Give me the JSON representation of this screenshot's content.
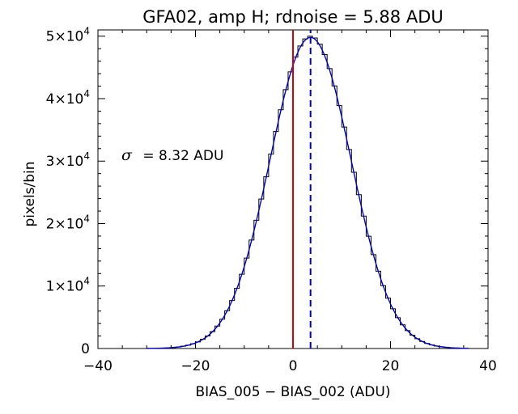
{
  "chart_data": {
    "type": "histogram",
    "title": "GFA02, amp H; rdnoise = 5.88 ADU",
    "xlabel": "BIAS_005 − BIAS_002 (ADU)",
    "ylabel": "pixels/bin",
    "annotation": {
      "symbol": "σ",
      "text": "= 8.32 ADU"
    },
    "xlim": [
      -40,
      40
    ],
    "ylim": [
      0,
      51000
    ],
    "xticks": [
      {
        "value": -40,
        "label": "−40"
      },
      {
        "value": -20,
        "label": "−20"
      },
      {
        "value": 0,
        "label": "0"
      },
      {
        "value": 20,
        "label": "20"
      },
      {
        "value": 40,
        "label": "40"
      }
    ],
    "yticks": [
      {
        "value": 0,
        "label": "0"
      },
      {
        "value": 10000,
        "label": "1×10",
        "exp": "4"
      },
      {
        "value": 20000,
        "label": "2×10",
        "exp": "4"
      },
      {
        "value": 30000,
        "label": "3×10",
        "exp": "4"
      },
      {
        "value": 40000,
        "label": "4×10",
        "exp": "4"
      },
      {
        "value": 50000,
        "label": "5×10",
        "exp": "4"
      }
    ],
    "histogram": {
      "bin_width": 1,
      "mean": 3.6,
      "sigma": 8.32,
      "peak": 50000,
      "range": [
        -30,
        36
      ]
    },
    "fit": {
      "mean": 3.6,
      "sigma": 8.32,
      "peak": 49800,
      "color": "#0000cc"
    },
    "vlines": [
      {
        "x": 0,
        "color": "#dd0000",
        "style": "solid"
      },
      {
        "x": 3.6,
        "color": "#0000cc",
        "style": "dashed"
      }
    ],
    "grid": false
  }
}
